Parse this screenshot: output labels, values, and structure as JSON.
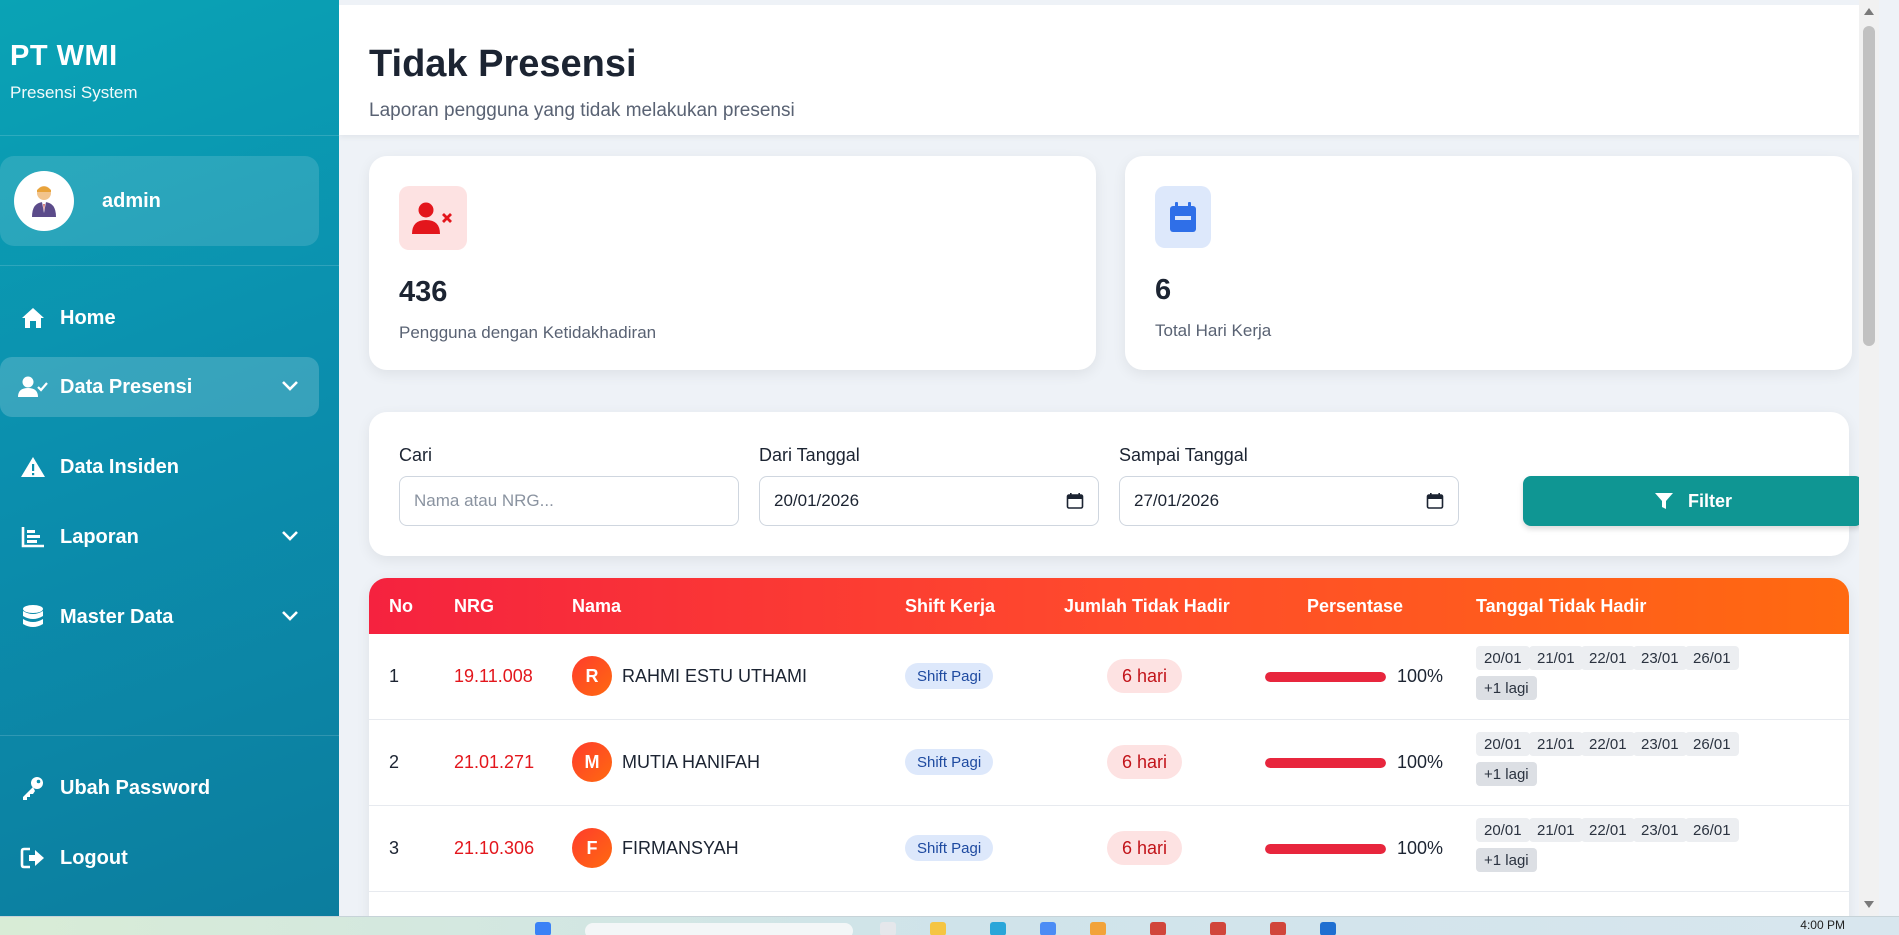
{
  "sidebar": {
    "brand_title": "PT WMI",
    "brand_sub": "Presensi System",
    "user_name": "admin",
    "nav": [
      {
        "label": "Home"
      },
      {
        "label": "Data Presensi"
      },
      {
        "label": "Data Insiden"
      },
      {
        "label": "Laporan"
      },
      {
        "label": "Master Data"
      },
      {
        "label": "Ubah Password"
      },
      {
        "label": "Logout"
      }
    ]
  },
  "header": {
    "title": "Tidak Presensi",
    "subtitle": "Laporan pengguna yang tidak melakukan presensi"
  },
  "stats": [
    {
      "value": "436",
      "label": "Pengguna dengan Ketidakhadiran",
      "icon": "user-x-icon",
      "color": "#e3161c"
    },
    {
      "value": "6",
      "label": "Total Hari Kerja",
      "icon": "calendar-icon",
      "color": "#2f6fe8"
    }
  ],
  "filter": {
    "search_label": "Cari",
    "search_placeholder": "Nama atau NRG...",
    "from_label": "Dari Tanggal",
    "from_value": "20/01/2026",
    "to_label": "Sampai Tanggal",
    "to_value": "27/01/2026",
    "button_label": "Filter"
  },
  "table": {
    "headers": [
      "No",
      "NRG",
      "Nama",
      "Shift Kerja",
      "Jumlah Tidak Hadir",
      "Persentase",
      "Tanggal Tidak Hadir"
    ],
    "rows": [
      {
        "no": "1",
        "nrg": "19.11.008",
        "initial": "R",
        "nama": "RAHMI ESTU UTHAMI",
        "shift": "Shift Pagi",
        "jumlah": "6 hari",
        "persen": "100%",
        "persen_value": 100,
        "dates": [
          "20/01",
          "21/01",
          "22/01",
          "23/01",
          "26/01"
        ],
        "more": "+1 lagi"
      },
      {
        "no": "2",
        "nrg": "21.01.271",
        "initial": "M",
        "nama": "MUTIA HANIFAH",
        "shift": "Shift Pagi",
        "jumlah": "6 hari",
        "persen": "100%",
        "persen_value": 100,
        "dates": [
          "20/01",
          "21/01",
          "22/01",
          "23/01",
          "26/01"
        ],
        "more": "+1 lagi"
      },
      {
        "no": "3",
        "nrg": "21.10.306",
        "initial": "F",
        "nama": "FIRMANSYAH",
        "shift": "Shift Pagi",
        "jumlah": "6 hari",
        "persen": "100%",
        "persen_value": 100,
        "dates": [
          "20/01",
          "21/01",
          "22/01",
          "23/01",
          "26/01"
        ],
        "more": "+1 lagi"
      }
    ]
  },
  "taskbar": {
    "clock": "4:00 PM"
  }
}
